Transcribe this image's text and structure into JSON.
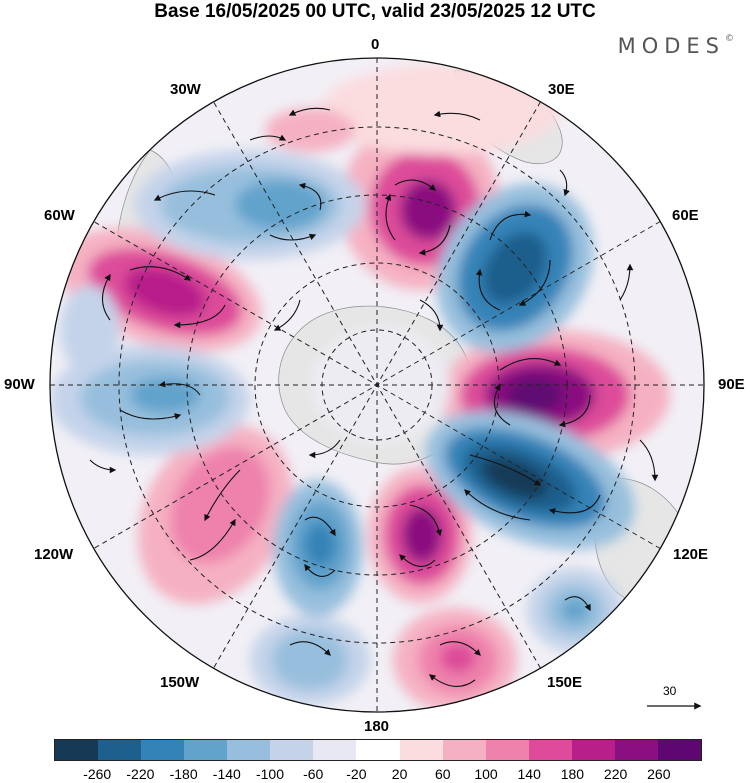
{
  "title": "Base 16/05/2025 00 UTC, valid 23/05/2025 12 UTC",
  "logo": {
    "text": "MODES",
    "mark": "©"
  },
  "meridian_labels": {
    "m0": "0",
    "m30e": "30E",
    "m60e": "60E",
    "m90e": "90E",
    "m120e": "120E",
    "m150e": "150E",
    "m180": "180",
    "m150w": "150W",
    "m120w": "120W",
    "m90w": "90W",
    "m60w": "60W",
    "m30w": "30W"
  },
  "reference_vector": {
    "value": "30"
  },
  "colorbar": {
    "ticks": [
      "-260",
      "-220",
      "-180",
      "-140",
      "-100",
      "-60",
      "-20",
      "20",
      "60",
      "100",
      "140",
      "180",
      "220",
      "260"
    ],
    "colors": [
      "#163a56",
      "#1d5f8d",
      "#3483b8",
      "#62a3cc",
      "#97bfdd",
      "#c4d3ea",
      "#e7e8f3",
      "#ffffff",
      "#fbdcdf",
      "#f5b1c2",
      "#ee82ac",
      "#dd4b9a",
      "#b81f8a",
      "#8a0f80",
      "#5e0772"
    ]
  },
  "colors": {
    "land": "#e9e9e9",
    "coast": "#8a8a8a"
  }
}
